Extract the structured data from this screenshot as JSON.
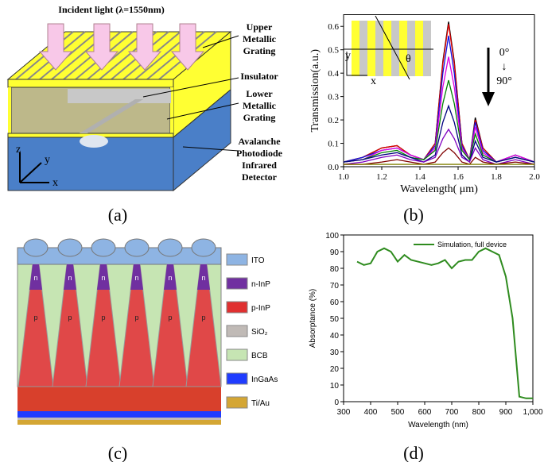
{
  "panel_a": {
    "incident_light": "Incident light (λ=1550nm)",
    "upper_grating": [
      "Upper",
      "Metallic",
      "Grating"
    ],
    "insulator": "Insulator",
    "lower_grating": [
      "Lower",
      "Metallic",
      "Grating"
    ],
    "detector": [
      "Avalanche",
      "Photodiode",
      "Infrared",
      "Detector"
    ],
    "axis_z": "z",
    "axis_y": "y",
    "axis_x": "x",
    "caption": "(a)"
  },
  "panel_b": {
    "inset_y": "y",
    "inset_x": "x",
    "inset_theta": "θ",
    "angle_start": "0°",
    "angle_arrow": "↓",
    "angle_end": "90°",
    "caption": "(b)"
  },
  "panel_c": {
    "cone_n": "n",
    "cone_p": "p",
    "legend": [
      {
        "label": "ITO",
        "color": "#8eb4e3"
      },
      {
        "label": "n-InP",
        "color": "#7030a0"
      },
      {
        "label": "p-InP",
        "color": "#e03030"
      },
      {
        "label": "SiO₂",
        "color": "#c0bab6"
      },
      {
        "label": "BCB",
        "color": "#c6e5b3"
      },
      {
        "label": "InGaAs",
        "color": "#1f3cff"
      },
      {
        "label": "Ti/Au",
        "color": "#d4a634"
      }
    ],
    "caption": "(c)"
  },
  "panel_d": {
    "caption": "(d)"
  },
  "chart_data": [
    {
      "type": "line",
      "ylabel": "Transmission(a.u.)",
      "xlabel": "Wavelength( μm)",
      "x": [
        1.0,
        1.1,
        1.2,
        1.28,
        1.35,
        1.42,
        1.48,
        1.52,
        1.55,
        1.58,
        1.62,
        1.66,
        1.69,
        1.73,
        1.8,
        1.9,
        2.0
      ],
      "series": [
        {
          "color": "#000000",
          "values": [
            0.02,
            0.04,
            0.08,
            0.09,
            0.05,
            0.03,
            0.1,
            0.45,
            0.62,
            0.45,
            0.1,
            0.03,
            0.21,
            0.08,
            0.02,
            0.05,
            0.02
          ]
        },
        {
          "color": "#e00000",
          "values": [
            0.02,
            0.04,
            0.08,
            0.09,
            0.05,
            0.03,
            0.1,
            0.44,
            0.61,
            0.44,
            0.1,
            0.03,
            0.2,
            0.08,
            0.02,
            0.05,
            0.02
          ]
        },
        {
          "color": "#1010e0",
          "values": [
            0.02,
            0.04,
            0.07,
            0.08,
            0.05,
            0.03,
            0.09,
            0.4,
            0.56,
            0.4,
            0.09,
            0.03,
            0.19,
            0.07,
            0.02,
            0.05,
            0.02
          ]
        },
        {
          "color": "#e000e0",
          "values": [
            0.02,
            0.03,
            0.07,
            0.08,
            0.05,
            0.03,
            0.08,
            0.34,
            0.47,
            0.34,
            0.08,
            0.03,
            0.17,
            0.06,
            0.02,
            0.05,
            0.02
          ]
        },
        {
          "color": "#008000",
          "values": [
            0.02,
            0.03,
            0.06,
            0.07,
            0.04,
            0.03,
            0.07,
            0.27,
            0.37,
            0.27,
            0.07,
            0.03,
            0.14,
            0.05,
            0.02,
            0.04,
            0.02
          ]
        },
        {
          "color": "#000080",
          "values": [
            0.02,
            0.03,
            0.05,
            0.06,
            0.04,
            0.02,
            0.05,
            0.19,
            0.26,
            0.19,
            0.05,
            0.02,
            0.11,
            0.04,
            0.02,
            0.04,
            0.02
          ]
        },
        {
          "color": "#8000c0",
          "values": [
            0.01,
            0.02,
            0.04,
            0.05,
            0.03,
            0.02,
            0.04,
            0.12,
            0.16,
            0.12,
            0.04,
            0.02,
            0.08,
            0.03,
            0.01,
            0.03,
            0.01
          ]
        },
        {
          "color": "#800000",
          "values": [
            0.01,
            0.01,
            0.02,
            0.03,
            0.02,
            0.01,
            0.02,
            0.06,
            0.08,
            0.06,
            0.02,
            0.01,
            0.04,
            0.02,
            0.01,
            0.02,
            0.01
          ]
        },
        {
          "color": "#808000",
          "values": [
            0.01,
            0.01,
            0.01,
            0.01,
            0.01,
            0.01,
            0.01,
            0.01,
            0.01,
            0.01,
            0.01,
            0.01,
            0.01,
            0.01,
            0.01,
            0.01,
            0.01
          ]
        }
      ],
      "xlim": [
        1,
        2
      ],
      "xticks": [
        {
          "value": 1,
          "label": "1.0"
        },
        1.2,
        1.4,
        1.6,
        1.8,
        {
          "value": 2,
          "label": "2.0"
        }
      ],
      "ylim": [
        0,
        0.65
      ],
      "yticks": [
        {
          "value": 0,
          "label": "0.0"
        },
        0.1,
        0.2,
        0.3,
        0.4,
        0.5,
        0.6
      ]
    },
    {
      "type": "line",
      "ylabel": "Absorptance (%)",
      "xlabel": "Wavelength (nm)",
      "x": [
        350,
        375,
        400,
        425,
        450,
        475,
        500,
        525,
        550,
        600,
        625,
        650,
        675,
        700,
        725,
        750,
        775,
        800,
        825,
        850,
        875,
        900,
        925,
        950,
        975,
        1000
      ],
      "series": [
        {
          "name": "Simulation, full device",
          "color": "#2e8b1e",
          "values": [
            84,
            82,
            83,
            90,
            92,
            90,
            84,
            88,
            85,
            83,
            82,
            83,
            85,
            80,
            84,
            85,
            85,
            90,
            92,
            90,
            88,
            75,
            50,
            3,
            2,
            2
          ]
        }
      ],
      "xlim": [
        300,
        1000
      ],
      "xticks": [
        300,
        400,
        500,
        600,
        700,
        800,
        900,
        {
          "value": 1000,
          "label": "1,000"
        }
      ],
      "ylim": [
        0,
        100
      ],
      "yticks": [
        0,
        10,
        20,
        30,
        40,
        50,
        60,
        70,
        80,
        90,
        100
      ],
      "legend": "top-right"
    }
  ]
}
